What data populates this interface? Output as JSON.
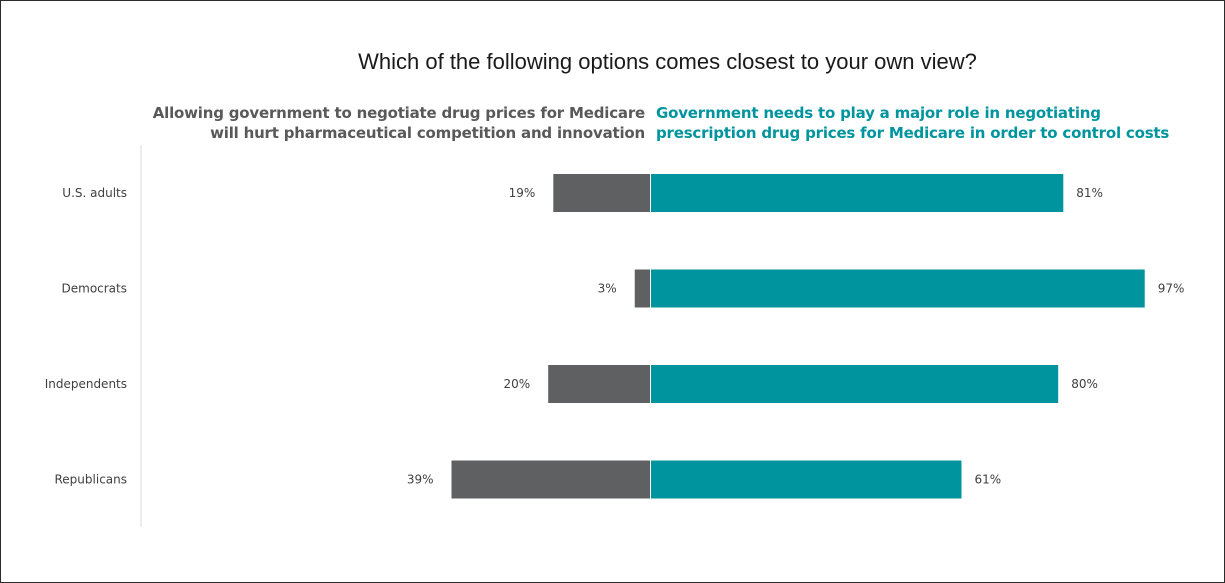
{
  "title": "Which of the following options comes closest to your own view?",
  "header_left": {
    "line1": "Allowing government to negotiate drug prices for Medicare",
    "line2": "will hurt pharmaceutical competition and innovation"
  },
  "header_right": {
    "line1": "Government needs to play a major role in negotiating",
    "line2": "prescription drug prices for Medicare in order to control costs"
  },
  "colors": {
    "left_series": "#5f6062",
    "right_series": "#00959e",
    "right_header": "#00959e",
    "left_header": "#595959"
  },
  "chart_data": {
    "type": "bar",
    "orientation": "horizontal-diverging",
    "categories": [
      "U.S. adults",
      "Democrats",
      "Independents",
      "Republicans"
    ],
    "series": [
      {
        "values": [
          19,
          3,
          20,
          39
        ],
        "labels": [
          "19%",
          "3%",
          "20%",
          "39%"
        ]
      },
      {
        "values": [
          81,
          97,
          80,
          61
        ],
        "labels": [
          "81%",
          "97%",
          "80%",
          "61%"
        ]
      }
    ],
    "unit": "%",
    "grid": false,
    "legend": "none"
  }
}
